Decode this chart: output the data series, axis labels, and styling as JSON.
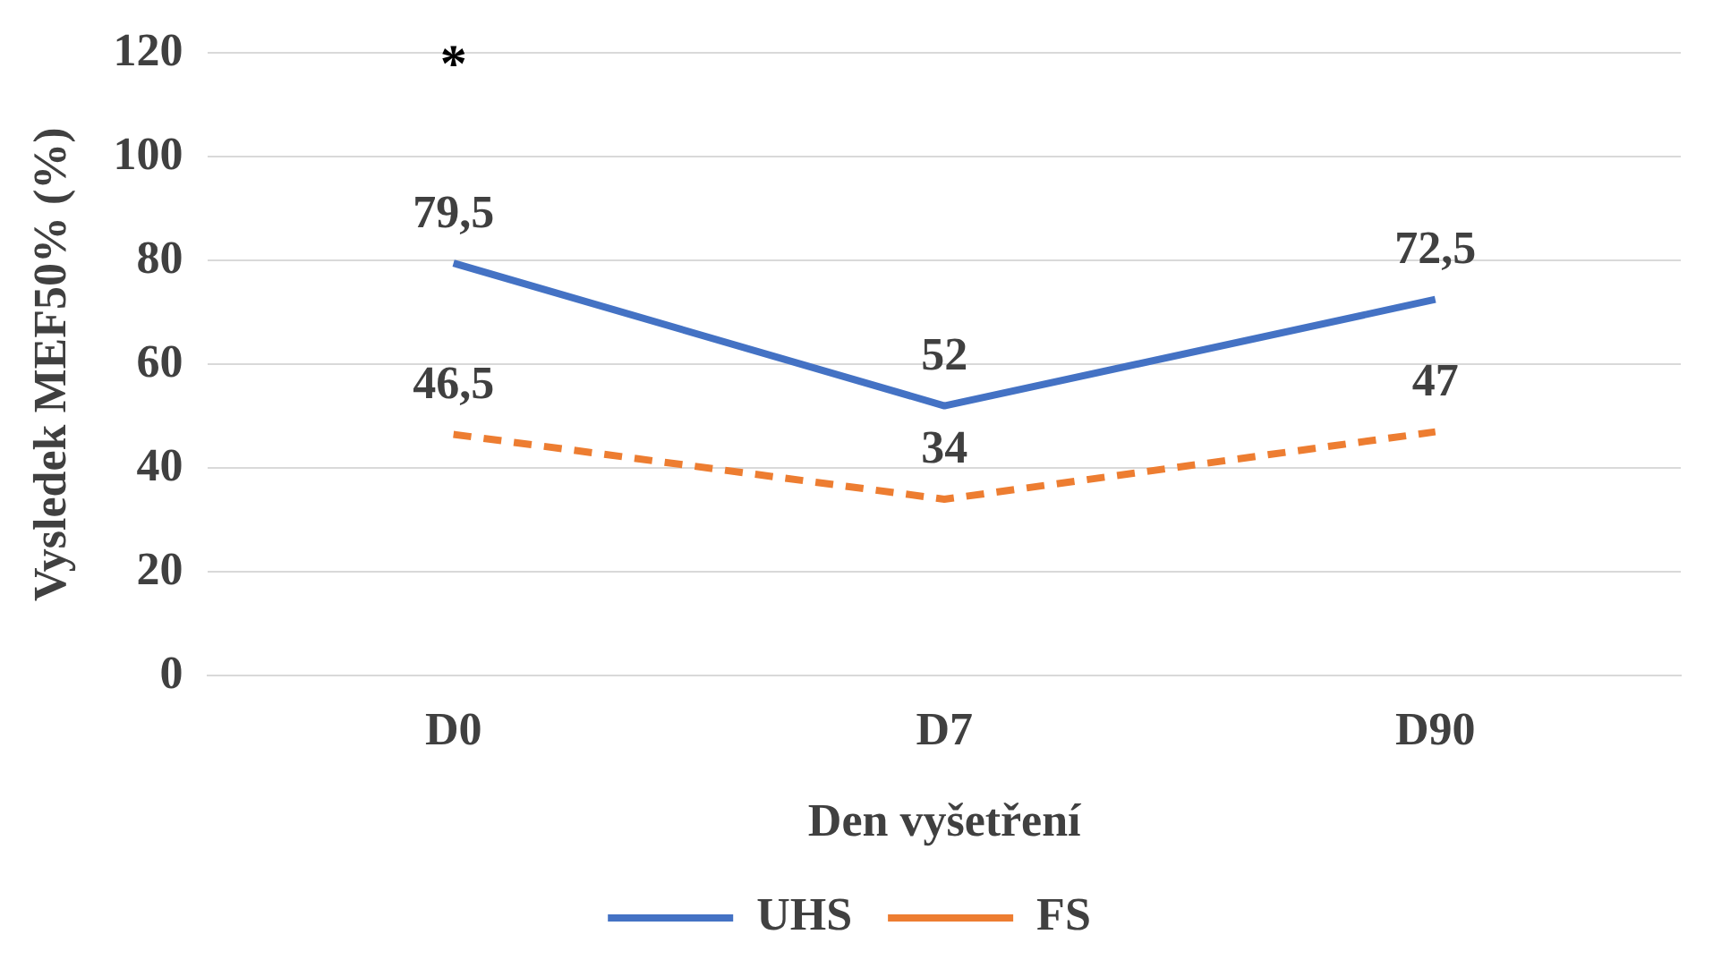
{
  "chart_data": {
    "type": "line",
    "xlabel": "Den vyšetření",
    "ylabel": "Vysledek MEF50% (%)",
    "categories": [
      "D0",
      "D7",
      "D90"
    ],
    "series": [
      {
        "name": "UHS",
        "color": "#4472c4",
        "line_style": "solid",
        "values": [
          79.5,
          52,
          72.5
        ],
        "value_labels": [
          "79,5",
          "52",
          "72,5"
        ]
      },
      {
        "name": "FS",
        "color": "#ed7d31",
        "line_style": "dashed",
        "values": [
          46.5,
          34,
          47
        ],
        "value_labels": [
          "46,5",
          "34",
          "47"
        ]
      }
    ],
    "ylim": [
      0,
      120
    ],
    "yticks": [
      0,
      20,
      40,
      60,
      80,
      100,
      120
    ],
    "grid": "y",
    "legend": "bottom",
    "marker": "none",
    "annotations": [
      "*"
    ]
  }
}
